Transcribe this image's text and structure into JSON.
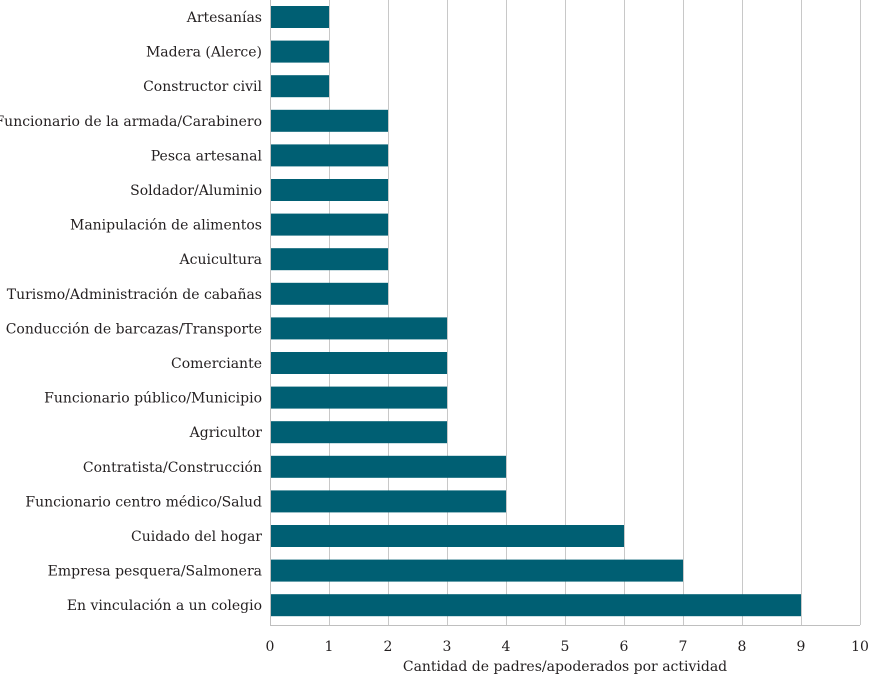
{
  "chart_data": {
    "type": "bar",
    "orientation": "horizontal",
    "title": "",
    "xlabel": "Cantidad de padres/apoderados por actividad",
    "ylabel": "",
    "xlim": [
      0,
      10
    ],
    "xticks": [
      0,
      1,
      2,
      3,
      4,
      5,
      6,
      7,
      8,
      9,
      10
    ],
    "grid": "vertical",
    "bar_color": "#005f73",
    "categories": [
      "Artesanías",
      "Madera (Alerce)",
      "Constructor civil",
      "Funcionario de la armada/Carabinero",
      "Pesca artesanal",
      "Soldador/Aluminio",
      "Manipulación de alimentos",
      "Acuicultura",
      "Turismo/Administración de cabañas",
      "Conducción de barcazas/Transporte",
      "Comerciante",
      "Funcionario público/Municipio",
      "Agricultor",
      "Contratista/Construcción",
      "Funcionario centro médico/Salud",
      "Cuidado del hogar",
      "Empresa pesquera/Salmonera",
      "En vinculación a un colegio"
    ],
    "values": [
      1,
      1,
      1,
      2,
      2,
      2,
      2,
      2,
      2,
      3,
      3,
      3,
      3,
      4,
      4,
      6,
      7,
      9
    ]
  }
}
